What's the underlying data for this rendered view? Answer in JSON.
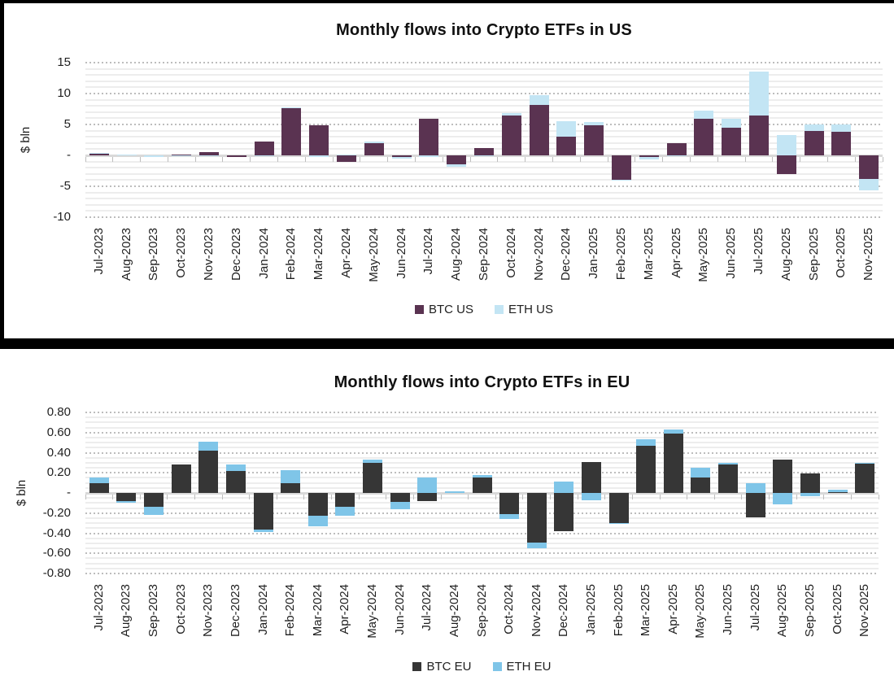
{
  "chart_data": [
    {
      "id": "us",
      "type": "bar",
      "title": "Monthly flows into Crypto ETFs in US",
      "y_axis_title": "$ bln",
      "ylim": [
        -10,
        15
      ],
      "y_major_step": 5,
      "y_minor_step": 1,
      "grid": true,
      "legend_position": "bottom",
      "y_ticks": [
        {
          "value": 15,
          "label": "15"
        },
        {
          "value": 10,
          "label": "10"
        },
        {
          "value": 5,
          "label": "5"
        },
        {
          "value": 0,
          "label": "-"
        },
        {
          "value": -5,
          "label": "-5"
        },
        {
          "value": -10,
          "label": "-10"
        }
      ],
      "categories": [
        "Jul-2023",
        "Aug-2023",
        "Sep-2023",
        "Oct-2023",
        "Nov-2023",
        "Dec-2023",
        "Jan-2024",
        "Feb-2024",
        "Mar-2024",
        "Apr-2024",
        "May-2024",
        "Jun-2024",
        "Jul-2024",
        "Aug-2024",
        "Sep-2024",
        "Oct-2024",
        "Nov-2024",
        "Dec-2024",
        "Jan-2025",
        "Feb-2025",
        "Mar-2025",
        "Apr-2025",
        "May-2025",
        "Jun-2025",
        "Jul-2025",
        "Aug-2025",
        "Sep-2025",
        "Oct-2025",
        "Nov-2025"
      ],
      "series": [
        {
          "name": "BTC US",
          "color": "#5A3351",
          "values": [
            0.3,
            0.0,
            0.0,
            0.15,
            0.5,
            -0.3,
            2.2,
            7.6,
            4.9,
            -1.0,
            2.0,
            -0.3,
            5.9,
            -1.4,
            1.2,
            6.5,
            8.1,
            3.0,
            4.9,
            -3.9,
            -0.2,
            2.0,
            5.9,
            4.5,
            6.5,
            -3.0,
            4.0,
            3.8,
            -3.8
          ]
        },
        {
          "name": "ETH US",
          "color": "#C3E5F4",
          "values": [
            0.1,
            0.1,
            -0.3,
            -0.1,
            -0.1,
            0.0,
            -0.1,
            0.2,
            -0.2,
            0.1,
            0.3,
            -0.2,
            -0.2,
            -0.4,
            -0.1,
            0.3,
            1.6,
            2.5,
            0.5,
            -0.2,
            -0.4,
            -0.1,
            1.3,
            1.4,
            7.0,
            3.3,
            1.0,
            1.2,
            -1.9
          ]
        }
      ]
    },
    {
      "id": "eu",
      "type": "bar",
      "title": "Monthly flows into Crypto ETFs in EU",
      "y_axis_title": "$ bln",
      "ylim": [
        -0.8,
        0.8
      ],
      "y_major_step": 0.2,
      "y_minor_step": 0.05,
      "grid": true,
      "legend_position": "bottom",
      "y_ticks": [
        {
          "value": 0.8,
          "label": "0.80"
        },
        {
          "value": 0.6,
          "label": "0.60"
        },
        {
          "value": 0.4,
          "label": "0.40"
        },
        {
          "value": 0.2,
          "label": "0.20"
        },
        {
          "value": 0,
          "label": "-"
        },
        {
          "value": -0.2,
          "label": "-0.20"
        },
        {
          "value": -0.4,
          "label": "-0.40"
        },
        {
          "value": -0.6,
          "label": "-0.60"
        },
        {
          "value": -0.8,
          "label": "-0.80"
        }
      ],
      "categories": [
        "Jul-2023",
        "Aug-2023",
        "Sep-2023",
        "Oct-2023",
        "Nov-2023",
        "Dec-2023",
        "Jan-2024",
        "Feb-2024",
        "Mar-2024",
        "Apr-2024",
        "May-2024",
        "Jun-2024",
        "Jul-2024",
        "Aug-2024",
        "Sep-2024",
        "Oct-2024",
        "Nov-2024",
        "Dec-2024",
        "Jan-2025",
        "Feb-2025",
        "Mar-2025",
        "Apr-2025",
        "May-2025",
        "Jun-2025",
        "Jul-2025",
        "Aug-2025",
        "Sep-2025",
        "Oct-2025",
        "Nov-2025"
      ],
      "series": [
        {
          "name": "BTC EU",
          "color": "#363636",
          "values": [
            0.1,
            -0.08,
            -0.14,
            0.28,
            0.42,
            0.22,
            -0.36,
            0.1,
            -0.23,
            -0.14,
            0.3,
            -0.09,
            -0.08,
            0.0,
            0.15,
            -0.21,
            -0.49,
            -0.38,
            0.31,
            -0.3,
            0.47,
            0.59,
            0.15,
            0.28,
            -0.24,
            0.33,
            0.19,
            0.01,
            0.29
          ]
        },
        {
          "name": "ETH EU",
          "color": "#7FC5E8",
          "values": [
            0.05,
            -0.02,
            -0.08,
            0.0,
            0.09,
            0.06,
            -0.03,
            0.13,
            -0.1,
            -0.09,
            0.03,
            -0.07,
            0.15,
            0.02,
            0.03,
            -0.05,
            -0.06,
            0.11,
            -0.07,
            -0.01,
            0.06,
            0.04,
            0.1,
            0.02,
            0.1,
            -0.11,
            -0.03,
            0.02,
            0.01
          ]
        }
      ]
    }
  ]
}
